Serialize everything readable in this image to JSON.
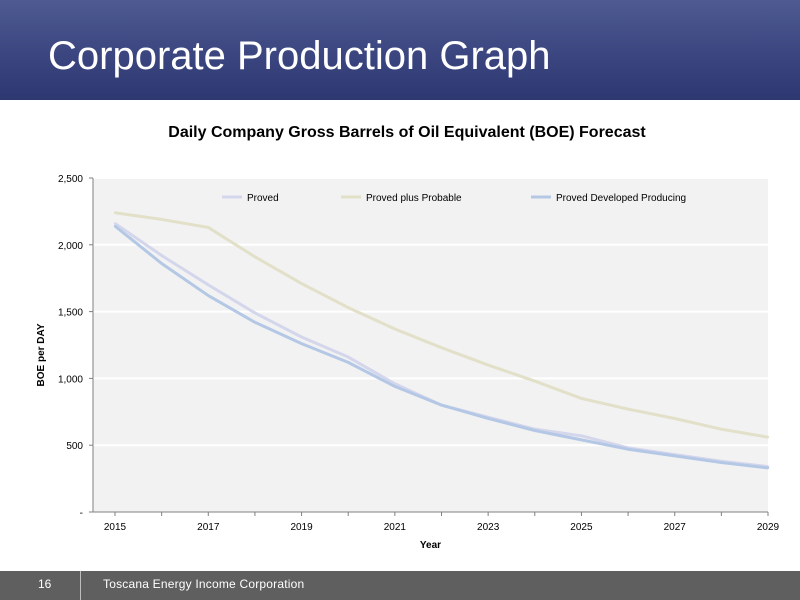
{
  "slide": {
    "title": "Corporate Production Graph"
  },
  "footer": {
    "page_number": "16",
    "company": "Toscana Energy Income Corporation"
  },
  "colors": {
    "header": "#3b4680",
    "plot_background": "#f2f2f2",
    "proved": "#d4d6ec",
    "proved_plus_probable": "#e2e0c8",
    "proved_developed_producing": "#b4c8e6",
    "footer": "#5f5f5f"
  },
  "chart_data": {
    "type": "line",
    "title": "Daily Company Gross Barrels of Oil Equivalent (BOE) Forecast",
    "xlabel": "Year",
    "ylabel": "BOE per DAY",
    "x": [
      2015,
      2016,
      2017,
      2018,
      2019,
      2020,
      2021,
      2022,
      2023,
      2024,
      2025,
      2026,
      2027,
      2028,
      2029
    ],
    "x_ticks": [
      "2015",
      "2017",
      "2019",
      "2021",
      "2023",
      "2025",
      "2027",
      "2029"
    ],
    "y_ticks": [
      "-",
      "500",
      "1,000",
      "1,500",
      "2,000",
      "2,500"
    ],
    "ylim": [
      0,
      2500
    ],
    "grid": "horizontal",
    "legend_position": "top",
    "series": [
      {
        "name": "Proved",
        "values": [
          2160,
          1920,
          1700,
          1490,
          1310,
          1160,
          960,
          800,
          710,
          620,
          570,
          480,
          430,
          380,
          340
        ]
      },
      {
        "name": "Proved plus Probable",
        "values": [
          2240,
          2190,
          2130,
          1910,
          1710,
          1530,
          1370,
          1230,
          1100,
          980,
          850,
          770,
          700,
          620,
          560
        ]
      },
      {
        "name": "Proved Developed Producing",
        "values": [
          2140,
          1860,
          1620,
          1420,
          1260,
          1120,
          940,
          800,
          700,
          610,
          540,
          470,
          420,
          370,
          330
        ]
      }
    ]
  }
}
